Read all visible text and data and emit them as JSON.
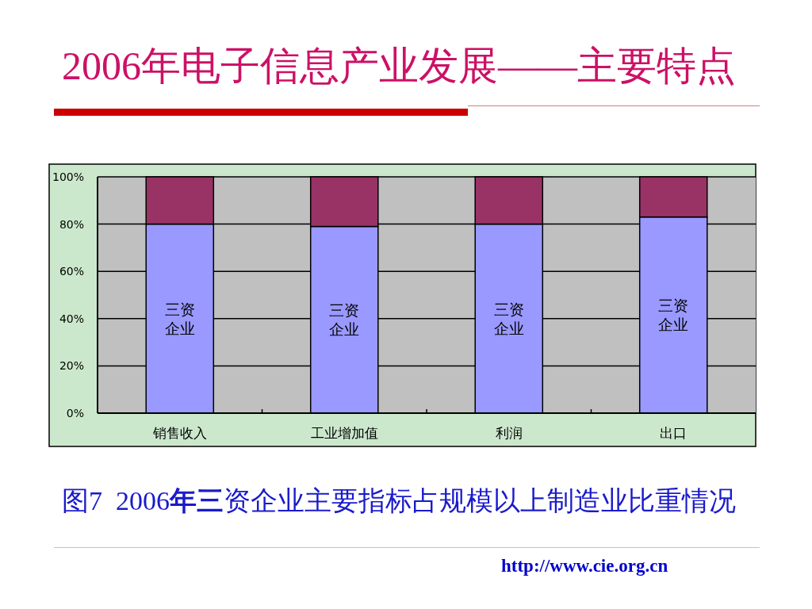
{
  "chart_data": {
    "type": "bar",
    "title": "2006年电子信息产业发展——主要特点",
    "categories": [
      "销售收入",
      "工业增加值",
      "利润",
      "出口"
    ],
    "series": [
      {
        "name": "三资企业",
        "color": "#9999ff",
        "values": [
          80,
          79,
          80,
          83
        ]
      },
      {
        "color": "#993366",
        "values": [
          20,
          21,
          20,
          17
        ]
      }
    ],
    "stacked": true,
    "ylim": [
      0,
      100
    ],
    "yticks": [
      {
        "value": 0,
        "label": "0%"
      },
      {
        "value": 20,
        "label": "20%"
      },
      {
        "value": 40,
        "label": "40%"
      },
      {
        "value": 60,
        "label": "60%"
      },
      {
        "value": 80,
        "label": "80%"
      },
      {
        "value": 100,
        "label": "100%"
      }
    ],
    "grid": "y",
    "legend": false,
    "annotations": [
      "图7  2006**年三**资企业主要指标占规模以上制造业比重情况",
      "http://www.cie.org.cn"
    ]
  }
}
